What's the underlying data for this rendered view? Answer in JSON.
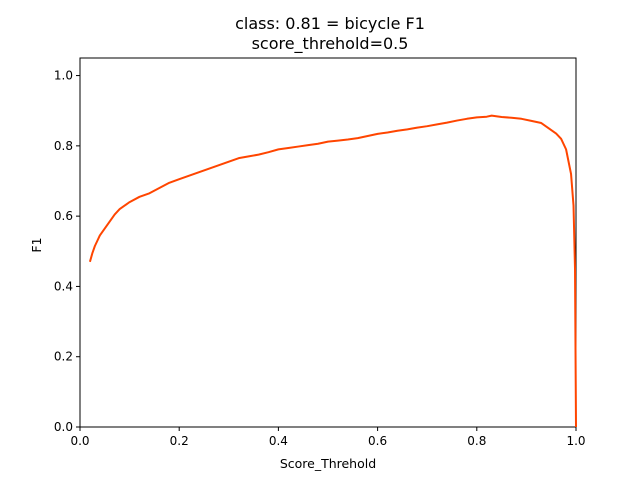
{
  "chart_data": {
    "type": "line",
    "title": [
      "class: 0.81 = bicycle F1",
      "score_threhold=0.5"
    ],
    "xlabel": "Score_Threhold",
    "ylabel": "F1",
    "xlim": [
      0.0,
      1.0
    ],
    "ylim": [
      0.0,
      1.05
    ],
    "xticks": [
      "0.0",
      "0.2",
      "0.4",
      "0.6",
      "0.8",
      "1.0"
    ],
    "yticks": [
      "0.0",
      "0.2",
      "0.4",
      "0.6",
      "0.8",
      "1.0"
    ],
    "grid": false,
    "legend": "none",
    "series": [
      {
        "color": "#ff4500",
        "points": [
          [
            0.02,
            0.47
          ],
          [
            0.025,
            0.495
          ],
          [
            0.03,
            0.515
          ],
          [
            0.035,
            0.53
          ],
          [
            0.04,
            0.545
          ],
          [
            0.05,
            0.565
          ],
          [
            0.06,
            0.585
          ],
          [
            0.07,
            0.605
          ],
          [
            0.08,
            0.62
          ],
          [
            0.09,
            0.63
          ],
          [
            0.1,
            0.64
          ],
          [
            0.12,
            0.655
          ],
          [
            0.14,
            0.665
          ],
          [
            0.16,
            0.68
          ],
          [
            0.18,
            0.695
          ],
          [
            0.2,
            0.705
          ],
          [
            0.22,
            0.715
          ],
          [
            0.24,
            0.725
          ],
          [
            0.26,
            0.735
          ],
          [
            0.28,
            0.745
          ],
          [
            0.3,
            0.755
          ],
          [
            0.32,
            0.765
          ],
          [
            0.34,
            0.77
          ],
          [
            0.36,
            0.775
          ],
          [
            0.38,
            0.782
          ],
          [
            0.4,
            0.79
          ],
          [
            0.42,
            0.794
          ],
          [
            0.44,
            0.798
          ],
          [
            0.46,
            0.802
          ],
          [
            0.48,
            0.806
          ],
          [
            0.5,
            0.812
          ],
          [
            0.52,
            0.815
          ],
          [
            0.54,
            0.818
          ],
          [
            0.56,
            0.822
          ],
          [
            0.58,
            0.828
          ],
          [
            0.6,
            0.834
          ],
          [
            0.62,
            0.838
          ],
          [
            0.64,
            0.843
          ],
          [
            0.66,
            0.847
          ],
          [
            0.68,
            0.852
          ],
          [
            0.7,
            0.856
          ],
          [
            0.72,
            0.861
          ],
          [
            0.74,
            0.866
          ],
          [
            0.76,
            0.872
          ],
          [
            0.78,
            0.877
          ],
          [
            0.8,
            0.881
          ],
          [
            0.82,
            0.883
          ],
          [
            0.83,
            0.886
          ],
          [
            0.85,
            0.882
          ],
          [
            0.87,
            0.88
          ],
          [
            0.89,
            0.877
          ],
          [
            0.91,
            0.871
          ],
          [
            0.93,
            0.865
          ],
          [
            0.94,
            0.855
          ],
          [
            0.95,
            0.845
          ],
          [
            0.96,
            0.835
          ],
          [
            0.97,
            0.82
          ],
          [
            0.98,
            0.79
          ],
          [
            0.99,
            0.72
          ],
          [
            0.995,
            0.63
          ],
          [
            0.998,
            0.45
          ],
          [
            1.0,
            0.0
          ]
        ]
      }
    ]
  }
}
